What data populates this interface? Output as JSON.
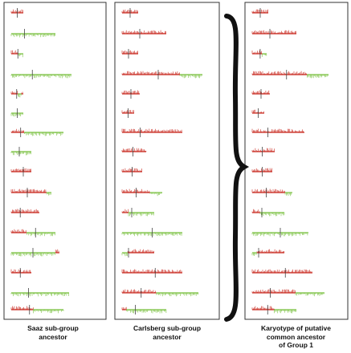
{
  "colors": {
    "red": "#c8261c",
    "green": "#7bc142",
    "frame": "#333333",
    "brace": "#111111",
    "centromere": "#444444"
  },
  "panels": [
    {
      "label_lines": [
        "Saaz sub-group",
        "ancestor"
      ],
      "chromosomes": [
        {
          "centromere": 0.5,
          "segments": [
            {
              "from": 0,
              "to": 1,
              "color": "red"
            }
          ]
        },
        {
          "centromere": 0.3,
          "segments": [
            {
              "from": 0,
              "to": 1,
              "color": "green"
            }
          ]
        },
        {
          "centromere": 0.55,
          "segments": [
            {
              "from": 0,
              "to": 0.6,
              "color": "red"
            },
            {
              "from": 0.6,
              "to": 1,
              "color": "green"
            }
          ]
        },
        {
          "centromere": 0.35,
          "segments": [
            {
              "from": 0,
              "to": 1,
              "color": "green"
            }
          ]
        },
        {
          "centromere": 0.45,
          "segments": [
            {
              "from": 0,
              "to": 0.55,
              "color": "red"
            },
            {
              "from": 0.55,
              "to": 0.85,
              "color": "green"
            },
            {
              "from": 0.85,
              "to": 1,
              "color": "red"
            }
          ]
        },
        {
          "centromere": 0.5,
          "segments": [
            {
              "from": 0,
              "to": 1,
              "color": "green"
            }
          ]
        },
        {
          "centromere": 0.18,
          "segments": [
            {
              "from": 0,
              "to": 0.25,
              "color": "red"
            },
            {
              "from": 0.25,
              "to": 1,
              "color": "green"
            }
          ]
        },
        {
          "centromere": 0.4,
          "segments": [
            {
              "from": 0,
              "to": 1,
              "color": "green"
            }
          ]
        },
        {
          "centromere": 0.6,
          "segments": [
            {
              "from": 0,
              "to": 1,
              "color": "red"
            }
          ]
        },
        {
          "centromere": 0.4,
          "segments": [
            {
              "from": 0,
              "to": 0.88,
              "color": "red"
            },
            {
              "from": 0.88,
              "to": 1,
              "color": "green"
            }
          ]
        },
        {
          "centromere": 0.32,
          "segments": [
            {
              "from": 0,
              "to": 1,
              "color": "red"
            }
          ]
        },
        {
          "centromere": 0.55,
          "segments": [
            {
              "from": 0,
              "to": 0.35,
              "color": "red"
            },
            {
              "from": 0.35,
              "to": 1,
              "color": "green"
            }
          ]
        },
        {
          "centromere": 0.45,
          "segments": [
            {
              "from": 0,
              "to": 0.92,
              "color": "green"
            },
            {
              "from": 0.92,
              "to": 1,
              "color": "red"
            }
          ]
        },
        {
          "centromere": 0.45,
          "segments": [
            {
              "from": 0,
              "to": 1,
              "color": "red"
            }
          ]
        },
        {
          "centromere": 0.3,
          "segments": [
            {
              "from": 0,
              "to": 1,
              "color": "green"
            }
          ]
        },
        {
          "centromere": 0.35,
          "segments": [
            {
              "from": 0,
              "to": 0.42,
              "color": "red"
            },
            {
              "from": 0.42,
              "to": 1,
              "color": "green"
            }
          ]
        }
      ]
    },
    {
      "label_lines": [
        "Carlsberg sub-group",
        "ancestor"
      ],
      "chromosomes": [
        {
          "centromere": 0.5,
          "segments": [
            {
              "from": 0,
              "to": 1,
              "color": "red"
            }
          ]
        },
        {
          "centromere": 0.4,
          "segments": [
            {
              "from": 0,
              "to": 1,
              "color": "red"
            }
          ]
        },
        {
          "centromere": 0.4,
          "segments": [
            {
              "from": 0,
              "to": 1,
              "color": "red"
            }
          ]
        },
        {
          "centromere": 0.45,
          "segments": [
            {
              "from": 0,
              "to": 0.72,
              "color": "red"
            },
            {
              "from": 0.72,
              "to": 1,
              "color": "green"
            }
          ]
        },
        {
          "centromere": 0.5,
          "segments": [
            {
              "from": 0,
              "to": 1,
              "color": "red"
            }
          ]
        },
        {
          "centromere": 0.5,
          "segments": [
            {
              "from": 0,
              "to": 1,
              "color": "red"
            }
          ]
        },
        {
          "centromere": 0.3,
          "segments": [
            {
              "from": 0,
              "to": 1,
              "color": "red"
            }
          ]
        },
        {
          "centromere": 0.45,
          "segments": [
            {
              "from": 0,
              "to": 1,
              "color": "red"
            }
          ]
        },
        {
          "centromere": 0.5,
          "segments": [
            {
              "from": 0,
              "to": 1,
              "color": "red"
            }
          ]
        },
        {
          "centromere": 0.35,
          "segments": [
            {
              "from": 0,
              "to": 0.7,
              "color": "red"
            },
            {
              "from": 0.7,
              "to": 1,
              "color": "green"
            }
          ]
        },
        {
          "centromere": 0.3,
          "segments": [
            {
              "from": 0,
              "to": 0.2,
              "color": "red"
            },
            {
              "from": 0.2,
              "to": 1,
              "color": "green"
            }
          ]
        },
        {
          "centromere": 0.5,
          "segments": [
            {
              "from": 0,
              "to": 1,
              "color": "green"
            }
          ]
        },
        {
          "centromere": 0.2,
          "segments": [
            {
              "from": 0,
              "to": 0.18,
              "color": "green"
            },
            {
              "from": 0.18,
              "to": 1,
              "color": "red"
            }
          ]
        },
        {
          "centromere": 0.55,
          "segments": [
            {
              "from": 0,
              "to": 1,
              "color": "red"
            }
          ]
        },
        {
          "centromere": 0.25,
          "segments": [
            {
              "from": 0,
              "to": 0.45,
              "color": "red"
            },
            {
              "from": 0.45,
              "to": 1,
              "color": "green"
            }
          ]
        },
        {
          "centromere": 0.3,
          "segments": [
            {
              "from": 0,
              "to": 0.1,
              "color": "red"
            },
            {
              "from": 0.1,
              "to": 1,
              "color": "green"
            }
          ]
        }
      ]
    },
    {
      "label_lines": [
        "Karyotype of putative",
        "common ancestor",
        "of Group 1"
      ],
      "chromosomes": [
        {
          "centromere": 0.5,
          "segments": [
            {
              "from": 0,
              "to": 1,
              "color": "red"
            }
          ]
        },
        {
          "centromere": 0.4,
          "segments": [
            {
              "from": 0,
              "to": 1,
              "color": "red"
            }
          ]
        },
        {
          "centromere": 0.55,
          "segments": [
            {
              "from": 0,
              "to": 0.7,
              "color": "red"
            },
            {
              "from": 0.7,
              "to": 1,
              "color": "green"
            }
          ]
        },
        {
          "centromere": 0.45,
          "segments": [
            {
              "from": 0,
              "to": 0.72,
              "color": "red"
            },
            {
              "from": 0.72,
              "to": 1,
              "color": "green"
            }
          ]
        },
        {
          "centromere": 0.5,
          "segments": [
            {
              "from": 0,
              "to": 1,
              "color": "red"
            }
          ]
        },
        {
          "centromere": 0.5,
          "segments": [
            {
              "from": 0,
              "to": 1,
              "color": "red"
            }
          ]
        },
        {
          "centromere": 0.3,
          "segments": [
            {
              "from": 0,
              "to": 1,
              "color": "red"
            }
          ]
        },
        {
          "centromere": 0.45,
          "segments": [
            {
              "from": 0,
              "to": 1,
              "color": "red"
            }
          ]
        },
        {
          "centromere": 0.5,
          "segments": [
            {
              "from": 0,
              "to": 1,
              "color": "red"
            }
          ]
        },
        {
          "centromere": 0.35,
          "segments": [
            {
              "from": 0,
              "to": 0.82,
              "color": "red"
            },
            {
              "from": 0.82,
              "to": 1,
              "color": "green"
            }
          ]
        },
        {
          "centromere": 0.3,
          "segments": [
            {
              "from": 0,
              "to": 0.25,
              "color": "red"
            },
            {
              "from": 0.25,
              "to": 1,
              "color": "green"
            }
          ]
        },
        {
          "centromere": 0.5,
          "segments": [
            {
              "from": 0,
              "to": 1,
              "color": "green"
            }
          ]
        },
        {
          "centromere": 0.2,
          "segments": [
            {
              "from": 0,
              "to": 0.15,
              "color": "green"
            },
            {
              "from": 0.15,
              "to": 1,
              "color": "red"
            }
          ]
        },
        {
          "centromere": 0.55,
          "segments": [
            {
              "from": 0,
              "to": 1,
              "color": "red"
            }
          ]
        },
        {
          "centromere": 0.25,
          "segments": [
            {
              "from": 0,
              "to": 0.6,
              "color": "red"
            },
            {
              "from": 0.6,
              "to": 1,
              "color": "green"
            }
          ]
        },
        {
          "centromere": 0.35,
          "segments": [
            {
              "from": 0,
              "to": 0.5,
              "color": "red"
            },
            {
              "from": 0.5,
              "to": 1,
              "color": "green"
            }
          ]
        }
      ]
    }
  ]
}
